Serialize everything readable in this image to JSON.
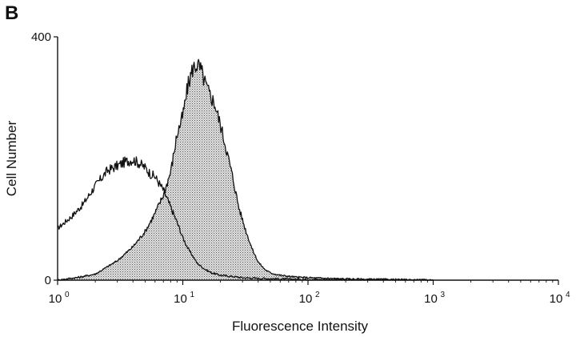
{
  "panel_label": "B",
  "chart_data": {
    "type": "area",
    "xlabel": "Fluorescence Intensity",
    "ylabel": "Cell Number",
    "xscale": "log",
    "xlim": [
      1,
      10000
    ],
    "ylim": [
      0,
      400
    ],
    "x_ticks": [
      {
        "base": "10",
        "exp": "0",
        "value": 1
      },
      {
        "base": "10",
        "exp": "1",
        "value": 10
      },
      {
        "base": "10",
        "exp": "2",
        "value": 100
      },
      {
        "base": "10",
        "exp": "3",
        "value": 1000
      },
      {
        "base": "10",
        "exp": "4",
        "value": 10000
      }
    ],
    "y_ticks": [
      {
        "label": "0",
        "value": 0
      },
      {
        "label": "400",
        "value": 400
      }
    ],
    "grid": false,
    "legend": "none",
    "series": [
      {
        "style": "outline",
        "color": "#111111",
        "x": [
          1,
          1.3,
          1.6,
          2,
          2.5,
          3,
          3.5,
          4,
          4.5,
          5,
          5.5,
          6,
          7,
          8,
          9,
          10,
          11,
          12,
          13,
          15,
          17,
          20,
          25,
          30,
          40,
          60,
          100,
          300,
          1000
        ],
        "y": [
          85,
          105,
          125,
          155,
          180,
          188,
          195,
          198,
          192,
          185,
          175,
          170,
          148,
          120,
          95,
          70,
          52,
          40,
          28,
          18,
          12,
          8,
          6,
          4,
          3,
          2,
          1,
          0,
          0
        ]
      },
      {
        "style": "filled",
        "color": "#111111",
        "fill": "stippled-gray",
        "x": [
          1,
          1.5,
          2,
          2.5,
          3,
          4,
          5,
          6,
          7,
          8,
          9,
          10,
          11,
          12,
          13,
          14,
          15,
          16,
          18,
          20,
          22,
          25,
          28,
          32,
          36,
          40,
          45,
          50,
          60,
          80,
          100,
          200,
          1000
        ],
        "y": [
          0,
          5,
          10,
          22,
          32,
          55,
          80,
          110,
          140,
          178,
          240,
          270,
          320,
          348,
          355,
          345,
          325,
          310,
          290,
          255,
          220,
          170,
          120,
          80,
          50,
          30,
          18,
          12,
          8,
          5,
          4,
          2,
          0
        ]
      }
    ]
  }
}
